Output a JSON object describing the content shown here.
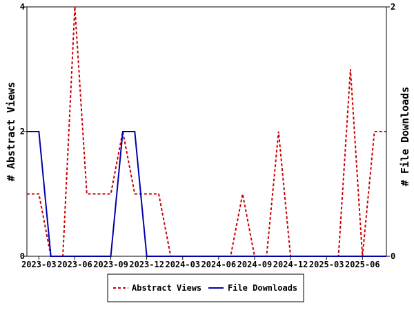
{
  "chart_data": {
    "type": "line",
    "title": "",
    "x_tick_labels": [
      "2023-03",
      "2023-06",
      "2023-09",
      "2023-12",
      "2024-03",
      "2024-06",
      "2024-09",
      "2024-12",
      "2025-03",
      "2025-06"
    ],
    "y_left_label": "# Abstract Views",
    "y_right_label": "# File Downloads",
    "y_left_ticks": [
      "0",
      "2",
      "4"
    ],
    "y_right_ticks": [
      "0",
      "2"
    ],
    "y_left_range": [
      0,
      4
    ],
    "y_right_range": [
      0,
      2
    ],
    "x": [
      "2023-02",
      "2023-03",
      "2023-04",
      "2023-05",
      "2023-06",
      "2023-07",
      "2023-08",
      "2023-09",
      "2023-10",
      "2023-11",
      "2023-12",
      "2024-01",
      "2024-02",
      "2024-03",
      "2024-04",
      "2024-05",
      "2024-06",
      "2024-07",
      "2024-08",
      "2024-09",
      "2024-10",
      "2024-11",
      "2024-12",
      "2025-01",
      "2025-02",
      "2025-03",
      "2025-04",
      "2025-05",
      "2025-06",
      "2025-07",
      "2025-08"
    ],
    "grid": false,
    "legend_position": "bottom",
    "series": [
      {
        "name": "Abstract Views",
        "axis": "left",
        "color": "#cc0000",
        "style": "dashed",
        "values": [
          1,
          1,
          0,
          0,
          4,
          1,
          1,
          1,
          2,
          1,
          1,
          1,
          0,
          0,
          0,
          0,
          0,
          0,
          1,
          0,
          0,
          2,
          0,
          0,
          0,
          0,
          0,
          3,
          0,
          2,
          2
        ]
      },
      {
        "name": "File Downloads",
        "axis": "right",
        "color": "#0000aa",
        "style": "solid",
        "values": [
          1,
          1,
          0,
          0,
          0,
          0,
          0,
          0,
          1,
          1,
          0,
          0,
          0,
          0,
          0,
          0,
          0,
          0,
          0,
          0,
          0,
          0,
          0,
          0,
          0,
          0,
          0,
          0,
          0,
          0,
          0
        ]
      }
    ]
  }
}
